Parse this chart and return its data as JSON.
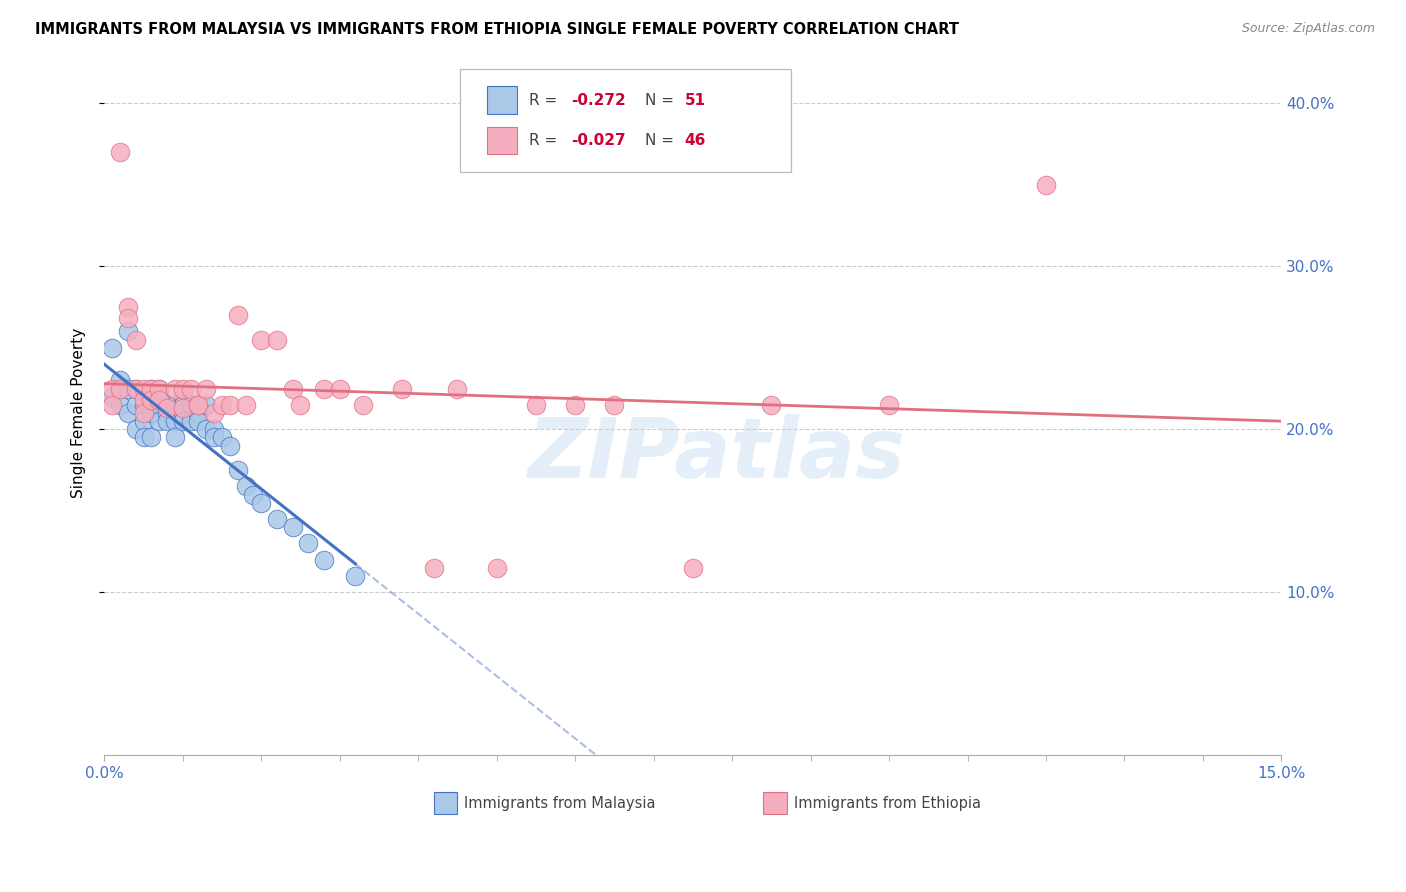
{
  "title": "IMMIGRANTS FROM MALAYSIA VS IMMIGRANTS FROM ETHIOPIA SINGLE FEMALE POVERTY CORRELATION CHART",
  "source": "Source: ZipAtlas.com",
  "ylabel": "Single Female Poverty",
  "xlim": [
    0.0,
    0.15
  ],
  "ylim": [
    0.0,
    0.42
  ],
  "ytick_values": [
    0.1,
    0.2,
    0.3,
    0.4
  ],
  "xtick_values": [
    0.0,
    0.15
  ],
  "xtick_labels": [
    "0.0%",
    "15.0%"
  ],
  "ytick_labels_right": [
    "10.0%",
    "20.0%",
    "30.0%",
    "40.0%"
  ],
  "R_malaysia": -0.272,
  "N_malaysia": 51,
  "R_ethiopia": -0.027,
  "N_ethiopia": 46,
  "color_malaysia": "#aac8e8",
  "color_ethiopia": "#f5aec0",
  "line_color_malaysia": "#4472c4",
  "line_color_ethiopia": "#e07080",
  "watermark": "ZIPatlas",
  "malaysia_x": [
    0.001,
    0.001,
    0.002,
    0.002,
    0.003,
    0.003,
    0.003,
    0.004,
    0.004,
    0.004,
    0.005,
    0.005,
    0.005,
    0.005,
    0.006,
    0.006,
    0.006,
    0.006,
    0.007,
    0.007,
    0.007,
    0.007,
    0.008,
    0.008,
    0.008,
    0.009,
    0.009,
    0.009,
    0.01,
    0.01,
    0.01,
    0.01,
    0.011,
    0.011,
    0.012,
    0.012,
    0.013,
    0.013,
    0.014,
    0.014,
    0.015,
    0.016,
    0.017,
    0.018,
    0.019,
    0.02,
    0.022,
    0.024,
    0.026,
    0.028,
    0.032
  ],
  "malaysia_y": [
    0.25,
    0.22,
    0.23,
    0.215,
    0.26,
    0.225,
    0.21,
    0.215,
    0.225,
    0.2,
    0.22,
    0.215,
    0.205,
    0.195,
    0.225,
    0.215,
    0.21,
    0.195,
    0.225,
    0.22,
    0.215,
    0.205,
    0.215,
    0.21,
    0.205,
    0.215,
    0.205,
    0.195,
    0.22,
    0.215,
    0.21,
    0.205,
    0.215,
    0.205,
    0.21,
    0.205,
    0.215,
    0.2,
    0.2,
    0.195,
    0.195,
    0.19,
    0.175,
    0.165,
    0.16,
    0.155,
    0.145,
    0.14,
    0.13,
    0.12,
    0.11
  ],
  "ethiopia_x": [
    0.001,
    0.001,
    0.002,
    0.002,
    0.003,
    0.003,
    0.004,
    0.004,
    0.005,
    0.005,
    0.005,
    0.006,
    0.006,
    0.007,
    0.007,
    0.008,
    0.009,
    0.01,
    0.01,
    0.011,
    0.012,
    0.012,
    0.013,
    0.014,
    0.015,
    0.016,
    0.017,
    0.018,
    0.02,
    0.022,
    0.024,
    0.025,
    0.028,
    0.03,
    0.033,
    0.038,
    0.042,
    0.045,
    0.05,
    0.055,
    0.06,
    0.065,
    0.075,
    0.085,
    0.1,
    0.12
  ],
  "ethiopia_y": [
    0.225,
    0.215,
    0.37,
    0.225,
    0.275,
    0.268,
    0.255,
    0.225,
    0.225,
    0.218,
    0.21,
    0.225,
    0.218,
    0.225,
    0.218,
    0.213,
    0.225,
    0.225,
    0.213,
    0.225,
    0.215,
    0.215,
    0.225,
    0.21,
    0.215,
    0.215,
    0.27,
    0.215,
    0.255,
    0.255,
    0.225,
    0.215,
    0.225,
    0.225,
    0.215,
    0.225,
    0.115,
    0.225,
    0.115,
    0.215,
    0.215,
    0.215,
    0.115,
    0.215,
    0.215,
    0.35
  ]
}
